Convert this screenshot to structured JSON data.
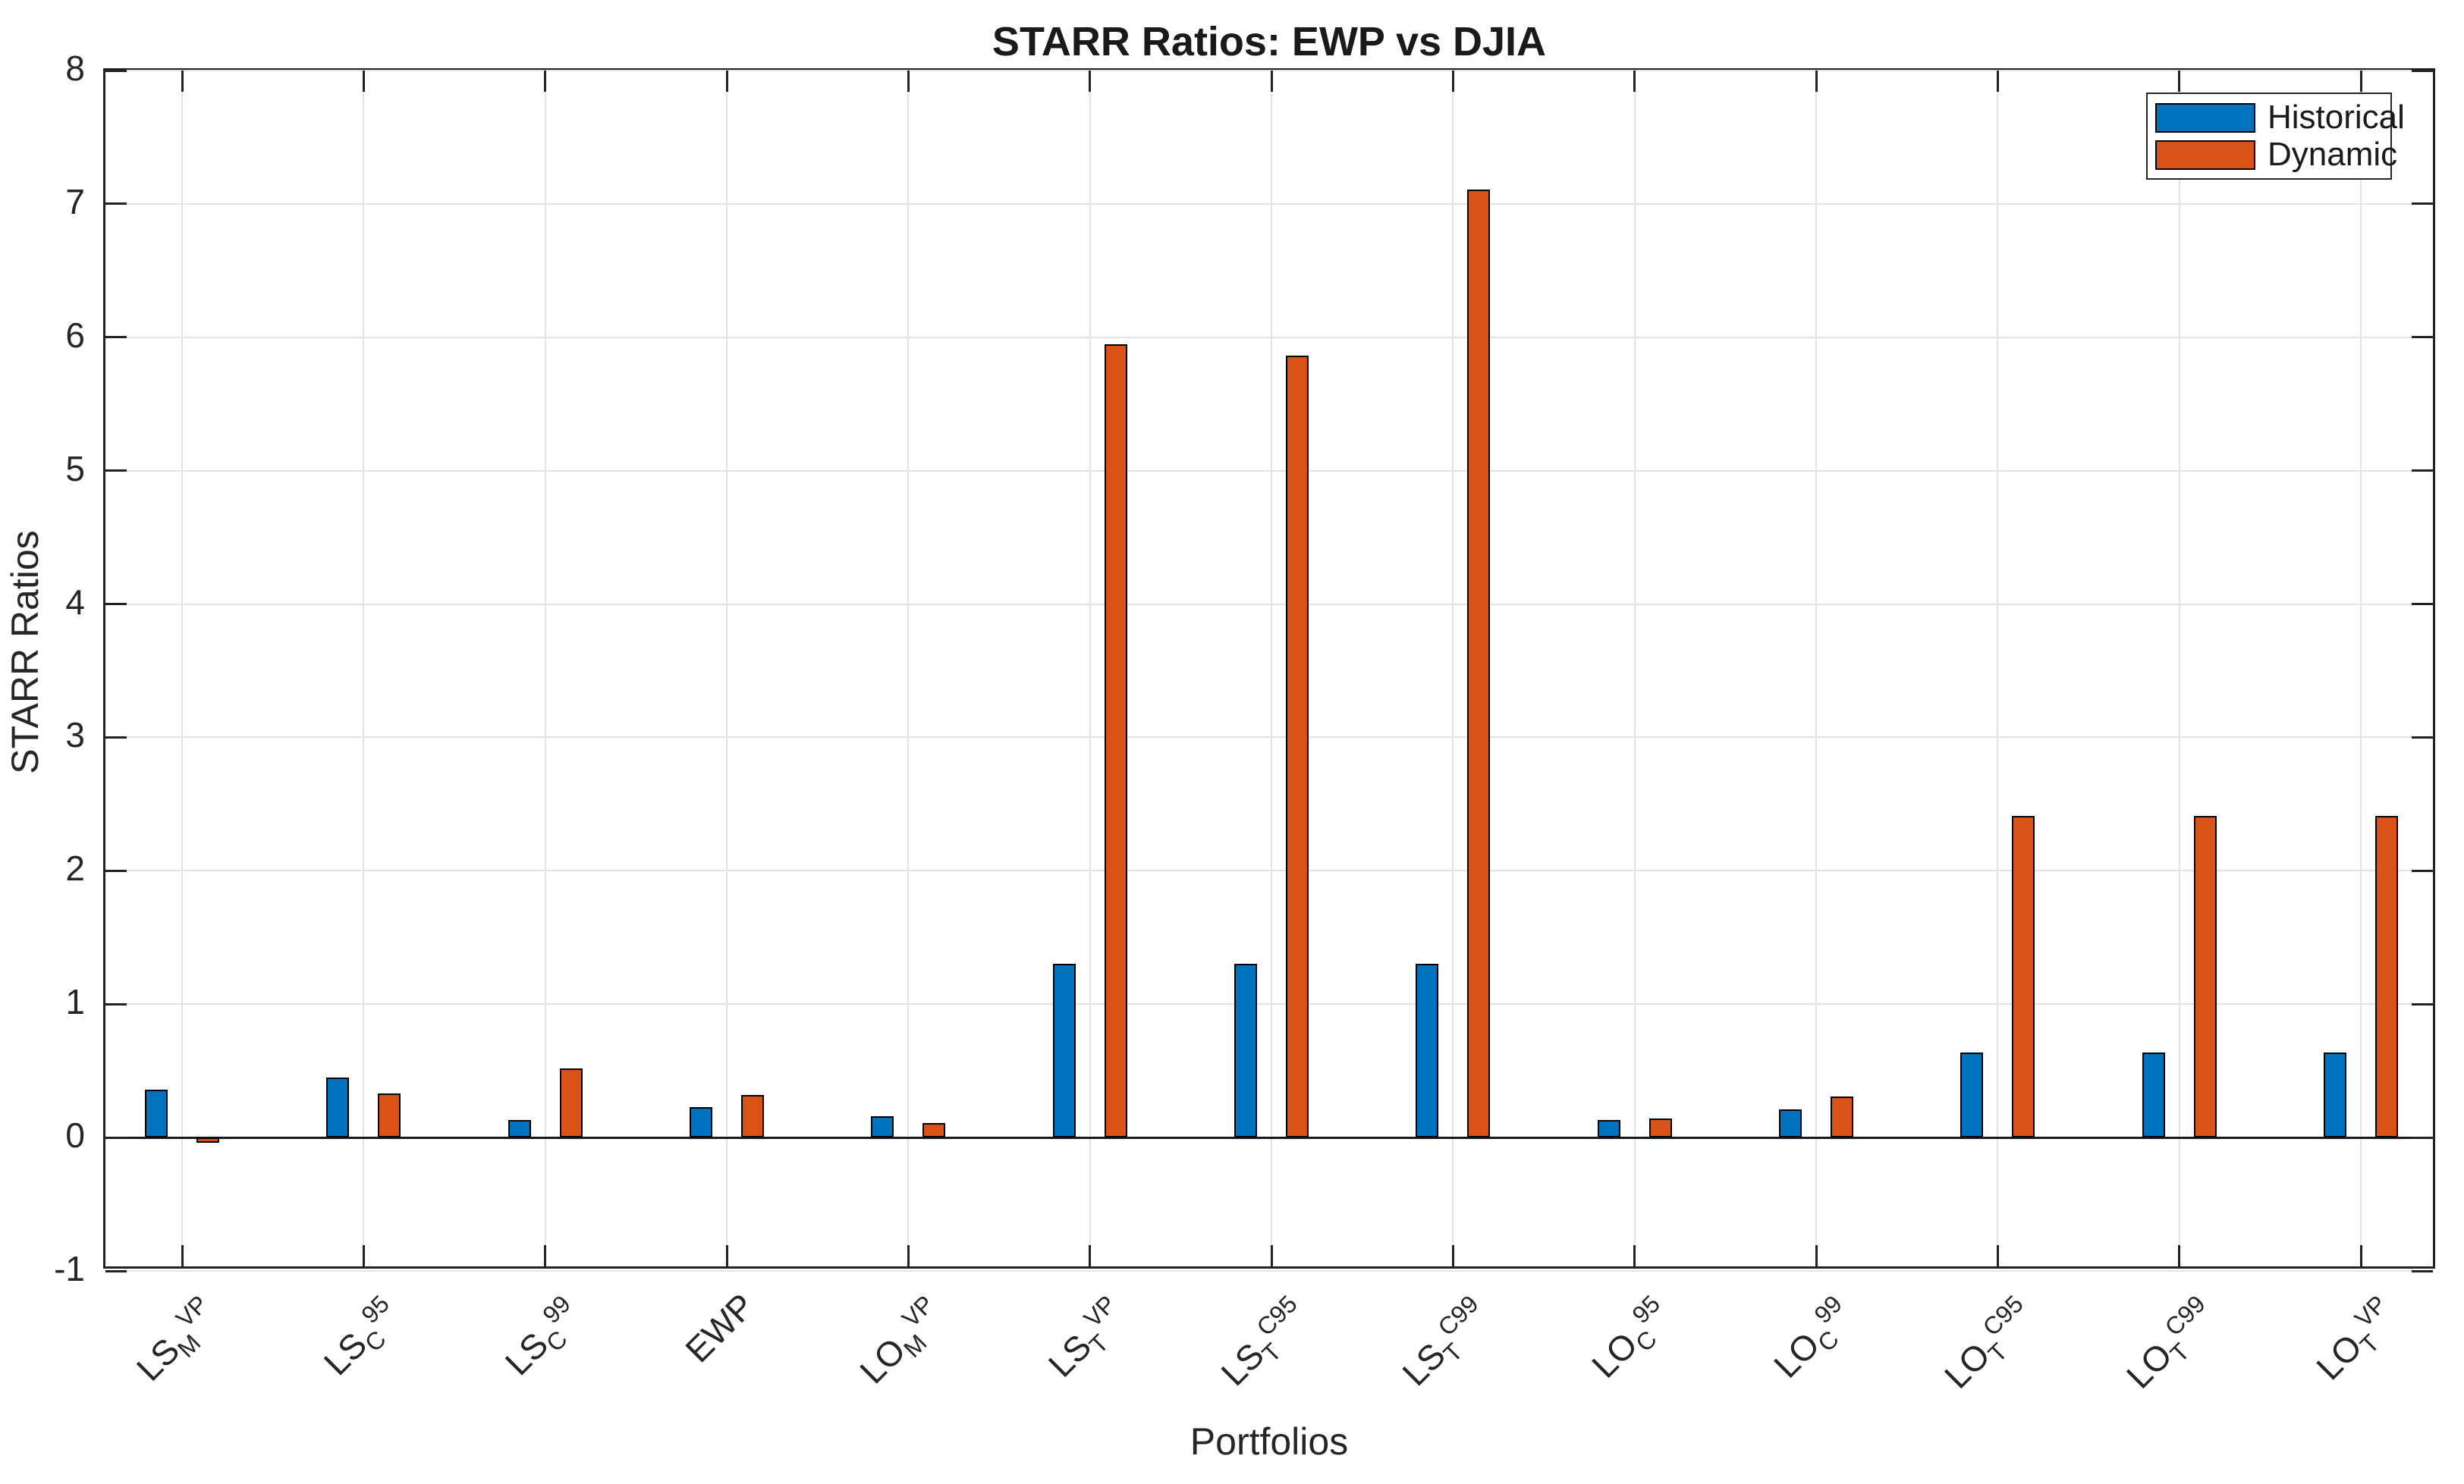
{
  "chart_data": {
    "type": "bar",
    "title": "STARR Ratios: EWP vs DJIA",
    "xlabel": "Portfolios",
    "ylabel": "STARR Ratios",
    "ylim": [
      -1,
      8
    ],
    "yticks": [
      -1,
      0,
      1,
      2,
      3,
      4,
      5,
      6,
      7,
      8
    ],
    "grid": true,
    "legend_position": "top-right-inside",
    "categories": [
      {
        "label": "LS_M^VP",
        "base": "LS",
        "sub": "M",
        "sup": "VP"
      },
      {
        "label": "LS_C^95",
        "base": "LS",
        "sub": "C",
        "sup": "95"
      },
      {
        "label": "LS_C^99",
        "base": "LS",
        "sub": "C",
        "sup": "99"
      },
      {
        "label": "EWP",
        "base": "EWP",
        "sub": "",
        "sup": ""
      },
      {
        "label": "LO_M^VP",
        "base": "LO",
        "sub": "M",
        "sup": "VP"
      },
      {
        "label": "LS_T^VP",
        "base": "LS",
        "sub": "T",
        "sup": "VP"
      },
      {
        "label": "LS_T^C95",
        "base": "LS",
        "sub": "T",
        "sup": "C95"
      },
      {
        "label": "LS_T^C99",
        "base": "LS",
        "sub": "T",
        "sup": "C99"
      },
      {
        "label": "LO_C^95",
        "base": "LO",
        "sub": "C",
        "sup": "95"
      },
      {
        "label": "LO_C^99",
        "base": "LO",
        "sub": "C",
        "sup": "99"
      },
      {
        "label": "LO_T^C95",
        "base": "LO",
        "sub": "T",
        "sup": "C95"
      },
      {
        "label": "LO_T^C99",
        "base": "LO",
        "sub": "T",
        "sup": "C99"
      },
      {
        "label": "LO_T^VP",
        "base": "LO",
        "sub": "T",
        "sup": "VP"
      }
    ],
    "series": [
      {
        "name": "Historical",
        "color": "#0072BD",
        "values": [
          0.36,
          0.45,
          0.13,
          0.23,
          0.16,
          1.3,
          1.3,
          1.3,
          0.13,
          0.21,
          0.64,
          0.64,
          0.64
        ]
      },
      {
        "name": "Dynamic",
        "color": "#D95319",
        "values": [
          -0.04,
          0.33,
          0.52,
          0.32,
          0.11,
          5.95,
          5.86,
          7.11,
          0.14,
          0.31,
          2.41,
          2.41,
          2.41
        ]
      }
    ]
  },
  "colors": {
    "background": "#FFFFFF",
    "grid": "#E3E3E3",
    "axis": "#222222",
    "text": "#262626",
    "bar_edge": "#000000",
    "zero_line": "#1A1A1A"
  }
}
